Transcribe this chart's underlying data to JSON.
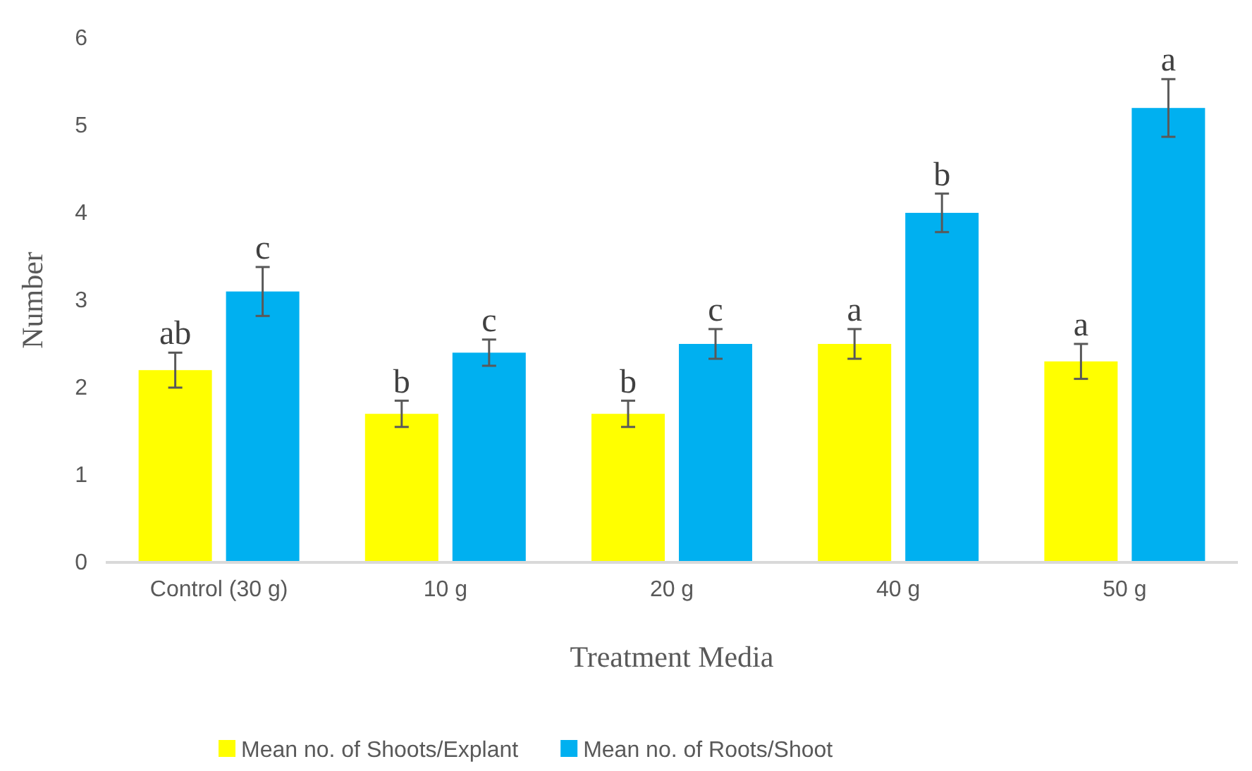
{
  "chart_data": {
    "type": "bar",
    "xlabel": "Treatment Media",
    "ylabel": "Number",
    "categories": [
      "Control (30 g)",
      "10 g",
      "20 g",
      "40 g",
      "50 g"
    ],
    "series": [
      {
        "name": "Mean no. of Shoots/Explant",
        "color": "#ffff00",
        "values": [
          2.2,
          1.7,
          1.7,
          2.5,
          2.3
        ],
        "errors": [
          0.2,
          0.15,
          0.15,
          0.17,
          0.2
        ]
      },
      {
        "name": "Mean no. of Roots/Shoot",
        "color": "#00b0f0",
        "values": [
          3.1,
          2.4,
          2.5,
          4,
          5.2
        ],
        "errors": [
          0.28,
          0.15,
          0.17,
          0.22,
          0.33
        ]
      }
    ],
    "ylim": [
      0,
      6
    ],
    "yticks": [
      0,
      1,
      2,
      3,
      4,
      5,
      6
    ],
    "grid": false,
    "legend": "bottom",
    "annotations": [
      "ab",
      "c",
      "b",
      "c",
      "b",
      "c",
      "a",
      "b",
      "a",
      "a"
    ]
  }
}
